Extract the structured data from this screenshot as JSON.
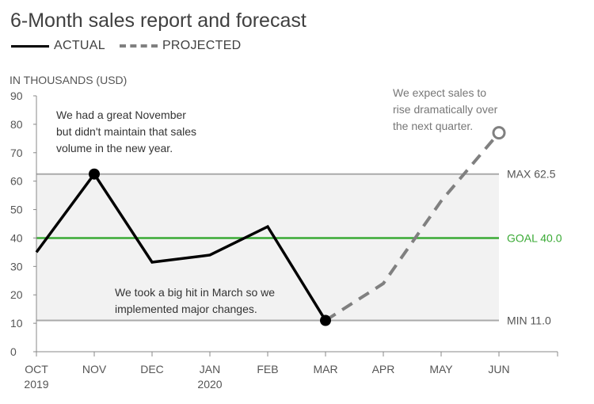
{
  "chart_data": {
    "type": "line",
    "title": "6-Month sales report and forecast",
    "ylabel": "IN THOUSANDS (USD)",
    "ylim": [
      0,
      90
    ],
    "yticks": [
      "0",
      "10",
      "20",
      "30",
      "40",
      "50",
      "60",
      "70",
      "80",
      "90"
    ],
    "xticks": [
      {
        "label": "OCT",
        "sub": "2019"
      },
      {
        "label": "NOV",
        "sub": ""
      },
      {
        "label": "DEC",
        "sub": ""
      },
      {
        "label": "JAN",
        "sub": "2020"
      },
      {
        "label": "FEB",
        "sub": ""
      },
      {
        "label": "MAR",
        "sub": ""
      },
      {
        "label": "APR",
        "sub": ""
      },
      {
        "label": "MAY",
        "sub": ""
      },
      {
        "label": "JUN",
        "sub": ""
      }
    ],
    "series": [
      {
        "name": "ACTUAL",
        "style": "solid",
        "color": "#000000",
        "points": [
          [
            0,
            35
          ],
          [
            1,
            62.5
          ],
          [
            2,
            31.5
          ],
          [
            3,
            34
          ],
          [
            4,
            44
          ],
          [
            5,
            11
          ]
        ]
      },
      {
        "name": "PROJECTED",
        "style": "dashed",
        "color": "#808080",
        "points": [
          [
            5,
            11
          ],
          [
            6,
            24
          ],
          [
            7,
            53
          ],
          [
            8,
            77
          ]
        ]
      }
    ],
    "reference_lines": [
      {
        "label": "MAX 62.5",
        "value": 62.5,
        "color": "#aaaaaa"
      },
      {
        "label": "GOAL 40.0",
        "value": 40.0,
        "color": "#3aaa35"
      },
      {
        "label": "MIN 11.0",
        "value": 11.0,
        "color": "#aaaaaa"
      }
    ],
    "band": {
      "from": 11.0,
      "to": 62.5,
      "color": "#f2f2f2"
    },
    "annotations": {
      "nov": [
        "We had a great November",
        "but didn't maintain that sales",
        "volume in the new year."
      ],
      "mar": [
        "We took a big hit in March so we",
        "implemented major changes."
      ],
      "jun": [
        "We expect sales to",
        "rise dramatically over",
        "the next quarter."
      ]
    },
    "legend_position": "top-left",
    "grid": false
  }
}
